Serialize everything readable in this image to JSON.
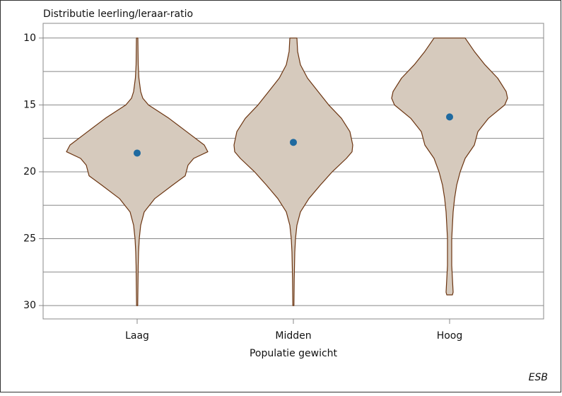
{
  "chart_data": {
    "type": "violin",
    "title": "Distributie leerling/leraar-ratio",
    "x_label": "Populatie gewicht",
    "source": "ESB",
    "categories": [
      "Laag",
      "Midden",
      "Hoog"
    ],
    "ylim": [
      31,
      8.9
    ],
    "yticks": [
      10,
      15,
      20,
      25,
      30
    ],
    "minor_grid": [
      12.5,
      17.5,
      22.5,
      27.5
    ],
    "grid": true,
    "fill_color": "#d6cabd",
    "edge_color": "#6b3410",
    "point_color": "#1f6aa0",
    "series": [
      {
        "mean": 18.6,
        "profile_y": [
          10,
          12,
          13,
          14,
          14.5,
          15,
          16,
          17,
          18,
          18.5,
          19,
          19.5,
          20.3,
          21,
          22,
          23,
          24,
          25,
          26,
          27,
          30
        ],
        "profile_width": [
          0.01,
          0.015,
          0.025,
          0.05,
          0.08,
          0.16,
          0.45,
          0.7,
          0.95,
          1.0,
          0.8,
          0.72,
          0.68,
          0.5,
          0.25,
          0.1,
          0.05,
          0.03,
          0.02,
          0.015,
          0.008
        ]
      },
      {
        "mean": 17.8,
        "profile_y": [
          10,
          11,
          12,
          13,
          14,
          15,
          16,
          17,
          18,
          18.5,
          19,
          20,
          21,
          22,
          23,
          24,
          25,
          26,
          28,
          30
        ],
        "profile_width": [
          0.05,
          0.06,
          0.1,
          0.2,
          0.35,
          0.5,
          0.68,
          0.8,
          0.84,
          0.83,
          0.75,
          0.55,
          0.38,
          0.22,
          0.1,
          0.05,
          0.03,
          0.02,
          0.012,
          0.008
        ]
      },
      {
        "mean": 15.9,
        "profile_y": [
          10,
          11,
          12,
          13,
          14,
          14.5,
          15,
          16,
          17,
          18,
          19,
          20,
          21,
          22,
          23,
          25,
          27,
          28,
          29,
          29.2
        ],
        "profile_width": [
          0.22,
          0.35,
          0.5,
          0.68,
          0.8,
          0.82,
          0.78,
          0.55,
          0.4,
          0.35,
          0.22,
          0.15,
          0.1,
          0.07,
          0.05,
          0.03,
          0.03,
          0.04,
          0.05,
          0.04
        ]
      }
    ]
  }
}
